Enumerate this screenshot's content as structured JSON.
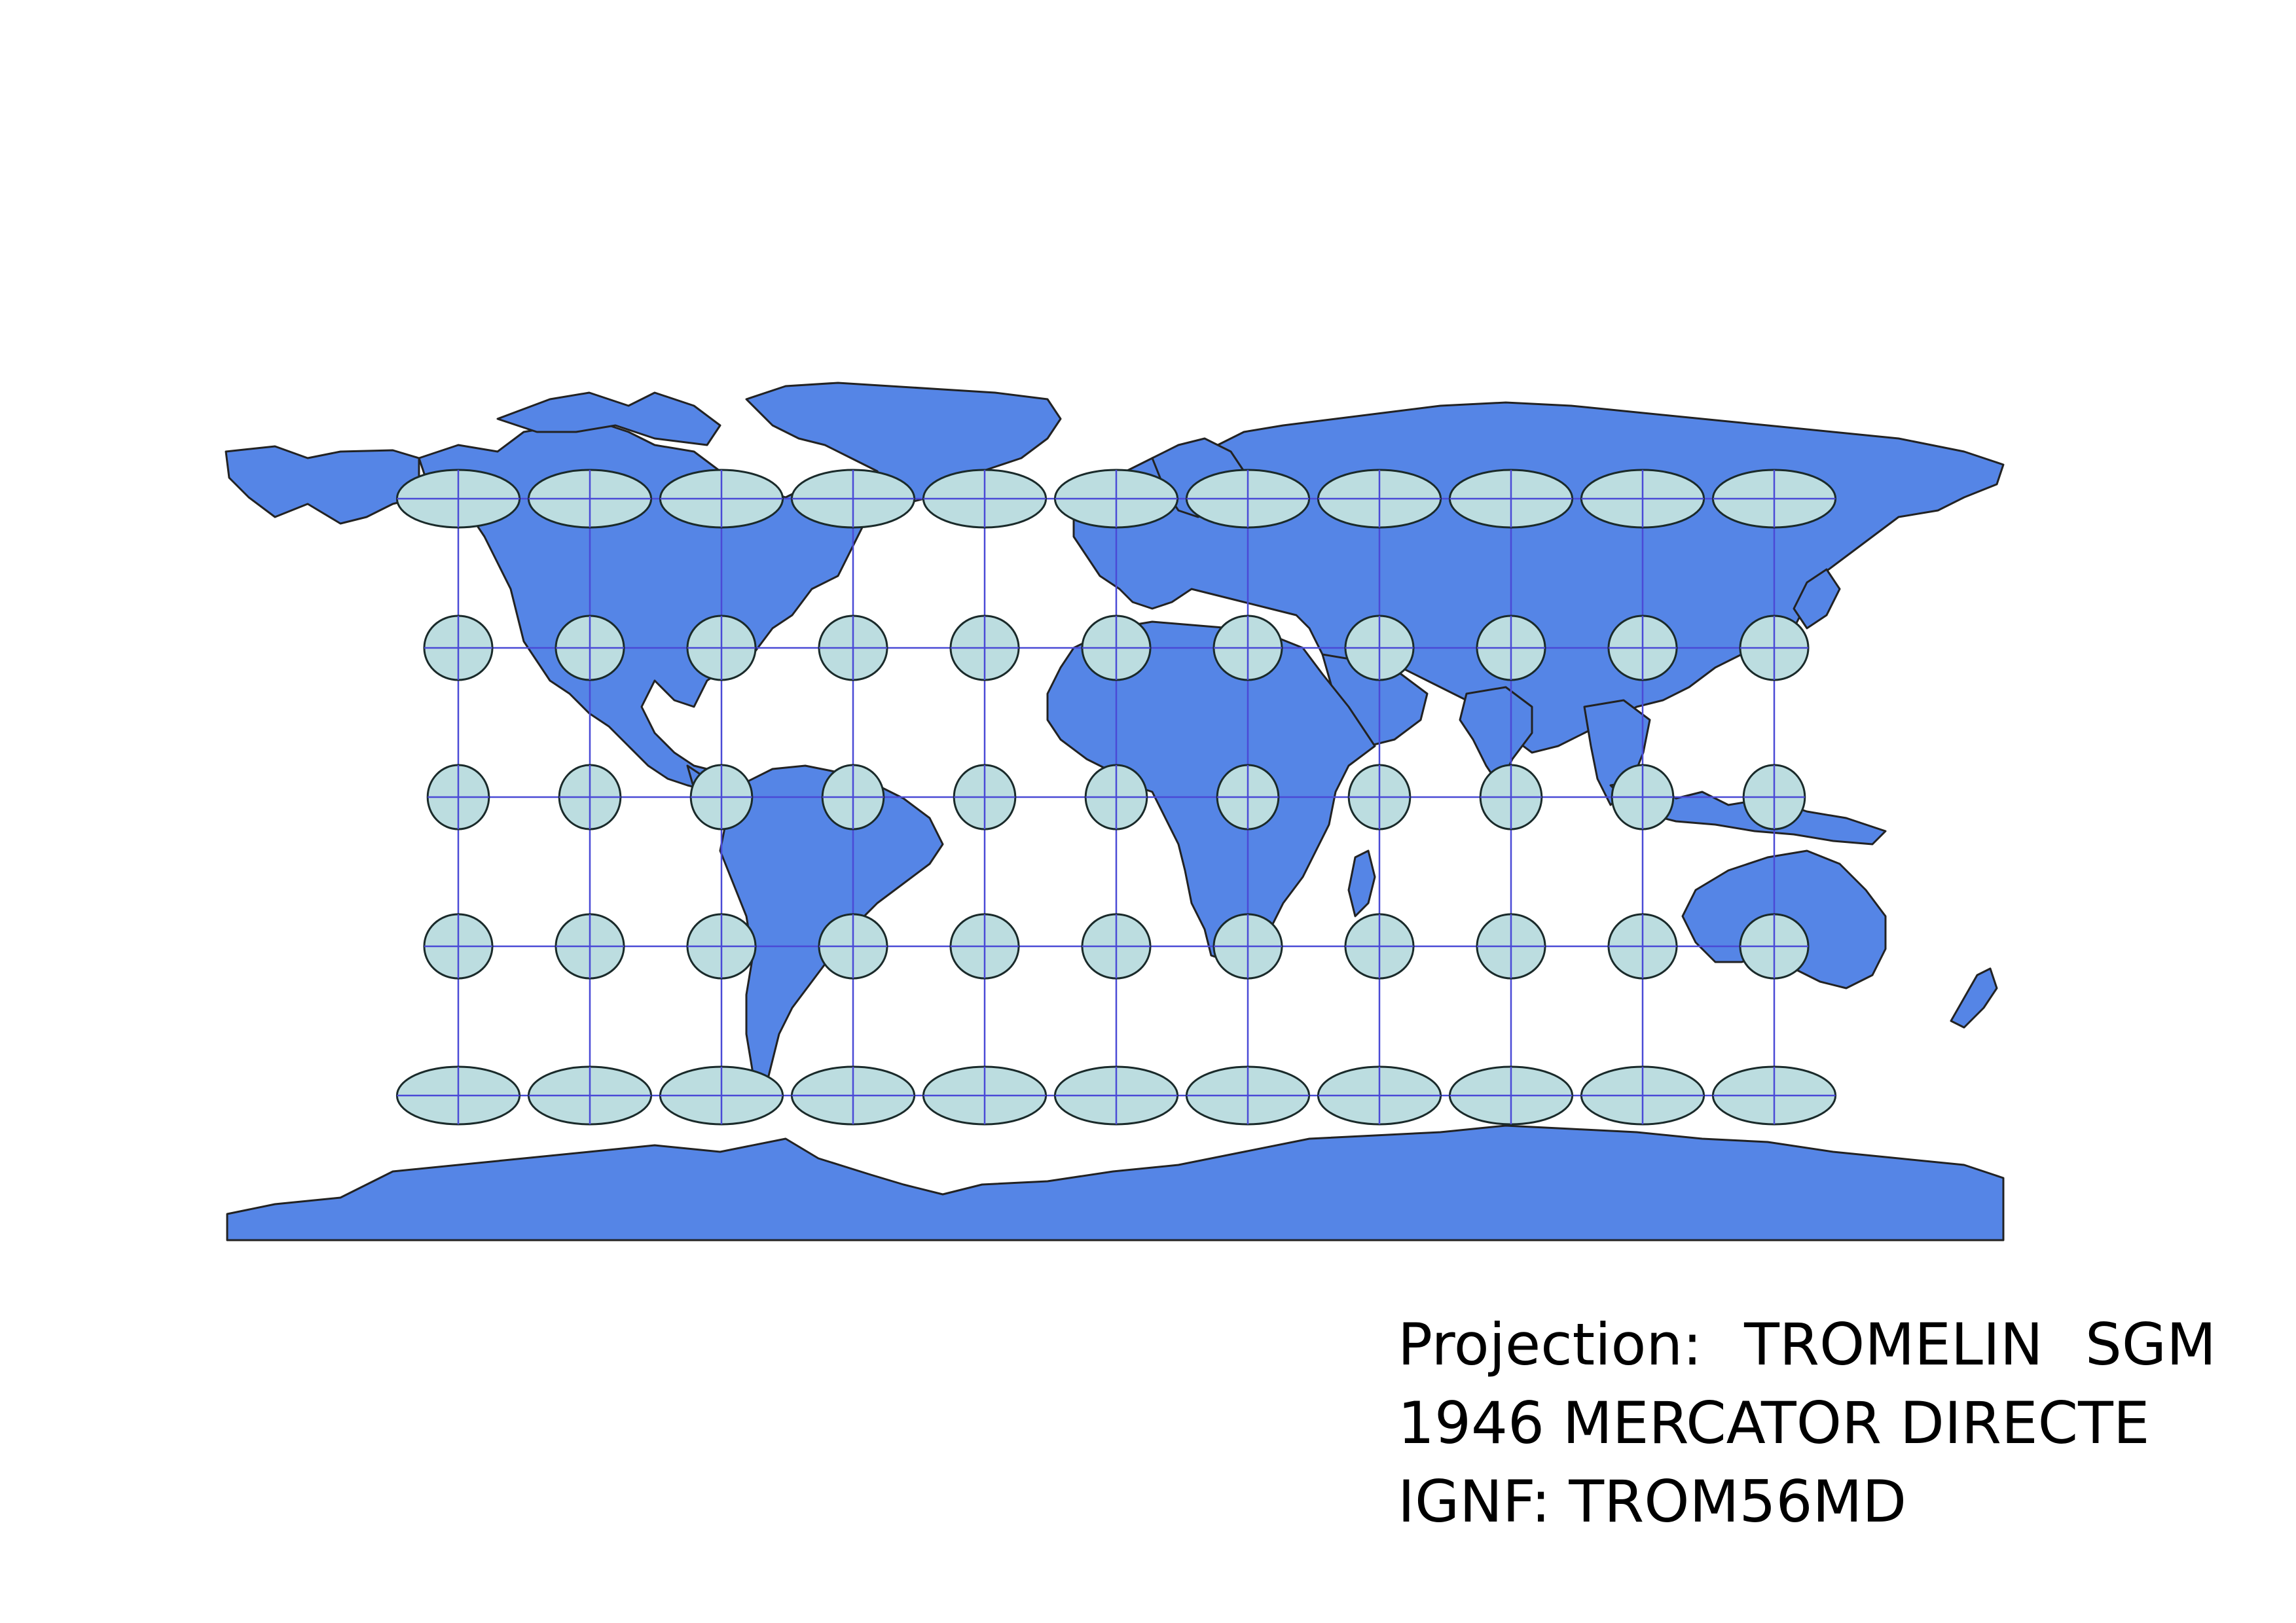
{
  "map": {
    "colors": {
      "land": "#5585e6",
      "land_outline": "#222222",
      "graticule": "#4a4ad6",
      "ellipse_fill": "#bcdde0",
      "ellipse_outline": "#1a2a2a",
      "background": "#ffffff"
    },
    "graticule": {
      "longitudes_deg": [
        -150,
        -120,
        -90,
        -60,
        -30,
        0,
        30,
        60,
        90,
        120,
        150
      ],
      "latitudes_deg": [
        60,
        30,
        0,
        -30,
        -60
      ]
    },
    "tissot_indicatrix": {
      "relative_horizontal_axis_by_latitude": {
        "60": 1.8,
        "30": 1.0,
        "0": 0.9,
        "-30": 1.0,
        "-60": 1.8
      }
    }
  },
  "caption": {
    "line1_words": [
      "Projection:",
      "TROMELIN",
      "SGM"
    ],
    "line2": "1946 MERCATOR DIRECTE",
    "line3": "IGNF: TROM56MD"
  }
}
